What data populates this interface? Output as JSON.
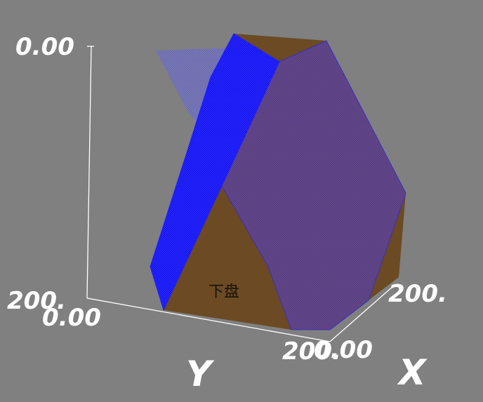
{
  "scene": {
    "background_color": "#808080",
    "axis_color": "#ffffff",
    "mesh_color": "#0000ff",
    "solid_color": "#6b4a24",
    "purple_face_color": "#5a3f76"
  },
  "axes": {
    "z_top_tick": "0.00",
    "z_bottom_tick": "200.",
    "y_origin_tick": "0.00",
    "y_end_tick": "200.",
    "x_origin_tick": "0.00",
    "x_end_tick": "200.",
    "y_title": "Y",
    "x_title": "X"
  },
  "faces": {
    "bottom_label": "下盘"
  }
}
